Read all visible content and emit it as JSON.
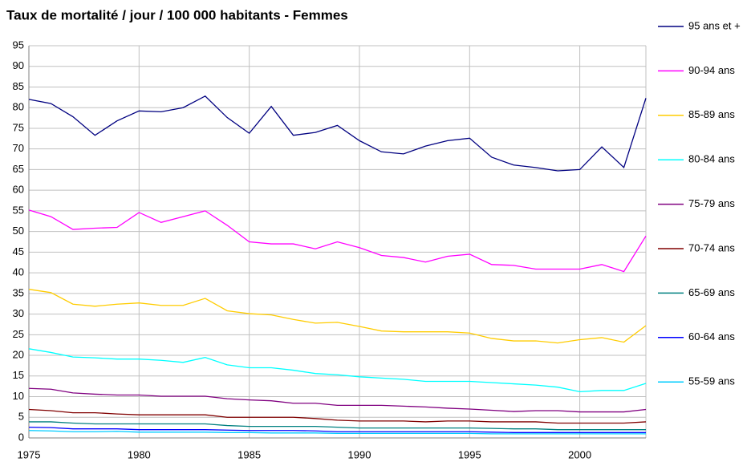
{
  "chart_data": {
    "type": "line",
    "title": "Taux de mortalité / jour / 100 000 habitants - Femmes",
    "x": [
      1975,
      1976,
      1977,
      1978,
      1979,
      1980,
      1981,
      1982,
      1983,
      1984,
      1985,
      1986,
      1987,
      1988,
      1989,
      1990,
      1991,
      1992,
      1993,
      1994,
      1995,
      1996,
      1997,
      1998,
      1999,
      2000,
      2001,
      2002,
      2003
    ],
    "xlim": [
      1975,
      2003
    ],
    "xticks": [
      1975,
      1980,
      1985,
      1990,
      1995,
      2000
    ],
    "ylim": [
      0,
      95
    ],
    "yticks": [
      0,
      5,
      10,
      15,
      20,
      25,
      30,
      35,
      40,
      45,
      50,
      55,
      60,
      65,
      70,
      75,
      80,
      85,
      90,
      95
    ],
    "grid": true,
    "legend": "right",
    "series": [
      {
        "name": "95 ans et +",
        "color": "#000080",
        "values": [
          82,
          81,
          77.8,
          73.3,
          76.8,
          79.2,
          79,
          80,
          82.8,
          77.6,
          73.8,
          80.3,
          73.3,
          74,
          75.7,
          72,
          69.3,
          68.8,
          70.7,
          72,
          72.6,
          68,
          66.1,
          65.5,
          64.7,
          65,
          70.5,
          65.5,
          82.3
        ]
      },
      {
        "name": "90-94 ans",
        "color": "#ff00ff",
        "values": [
          55.2,
          53.6,
          50.5,
          50.8,
          51,
          54.6,
          52.2,
          53.6,
          55,
          51.5,
          47.5,
          47,
          47,
          45.8,
          47.5,
          46.1,
          44.2,
          43.7,
          42.6,
          44,
          44.5,
          42,
          41.8,
          40.9,
          40.9,
          40.9,
          42,
          40.3,
          48.9
        ]
      },
      {
        "name": "85-89 ans",
        "color": "#ffcc00",
        "values": [
          36,
          35.2,
          32.4,
          31.9,
          32.4,
          32.7,
          32.1,
          32.1,
          33.8,
          30.8,
          30.1,
          29.8,
          28.7,
          27.8,
          28,
          27,
          25.9,
          25.7,
          25.7,
          25.7,
          25.4,
          24.1,
          23.5,
          23.5,
          23,
          23.8,
          24.3,
          23.2,
          27.2
        ]
      },
      {
        "name": "80-84 ans",
        "color": "#00ffff",
        "values": [
          21.6,
          20.7,
          19.6,
          19.4,
          19.1,
          19.1,
          18.8,
          18.3,
          19.5,
          17.7,
          17,
          17,
          16.4,
          15.6,
          15.3,
          14.8,
          14.5,
          14.2,
          13.7,
          13.7,
          13.7,
          13.4,
          13.1,
          12.8,
          12.3,
          11.2,
          11.5,
          11.5,
          13.2
        ]
      },
      {
        "name": "75-79 ans",
        "color": "#800080",
        "values": [
          12,
          11.8,
          10.9,
          10.6,
          10.4,
          10.4,
          10.1,
          10.1,
          10.1,
          9.5,
          9.2,
          9,
          8.4,
          8.4,
          7.9,
          7.9,
          7.9,
          7.7,
          7.5,
          7.2,
          7,
          6.7,
          6.4,
          6.6,
          6.6,
          6.3,
          6.3,
          6.3,
          6.9
        ]
      },
      {
        "name": "70-74 ans",
        "color": "#800000",
        "values": [
          6.9,
          6.6,
          6.1,
          6.1,
          5.8,
          5.6,
          5.6,
          5.6,
          5.6,
          5,
          5,
          5,
          5,
          4.7,
          4.3,
          4.1,
          4.1,
          4.1,
          3.9,
          4.1,
          4.1,
          3.9,
          3.9,
          3.9,
          3.6,
          3.6,
          3.6,
          3.6,
          3.9
        ]
      },
      {
        "name": "65-69 ans",
        "color": "#008080",
        "values": [
          3.9,
          3.9,
          3.6,
          3.4,
          3.4,
          3.4,
          3.4,
          3.4,
          3.4,
          3,
          2.8,
          2.8,
          2.8,
          2.8,
          2.6,
          2.4,
          2.4,
          2.4,
          2.4,
          2.4,
          2.4,
          2.3,
          2.2,
          2.2,
          2,
          2,
          2,
          2,
          2
        ]
      },
      {
        "name": "60-64 ans",
        "color": "#0000ff",
        "values": [
          2.6,
          2.5,
          2.2,
          2.2,
          2.2,
          2,
          2,
          2,
          2,
          1.9,
          1.8,
          1.8,
          1.8,
          1.7,
          1.5,
          1.5,
          1.5,
          1.5,
          1.5,
          1.5,
          1.5,
          1.4,
          1.3,
          1.3,
          1.3,
          1.3,
          1.3,
          1.3,
          1.3
        ]
      },
      {
        "name": "55-59 ans",
        "color": "#00ccff",
        "values": [
          1.8,
          1.7,
          1.5,
          1.5,
          1.6,
          1.4,
          1.4,
          1.4,
          1.4,
          1.3,
          1.3,
          1.2,
          1.2,
          1.2,
          1.1,
          1.1,
          1.1,
          1.1,
          1.1,
          1.1,
          1.1,
          1,
          1,
          1,
          1,
          1,
          1,
          1,
          1
        ]
      }
    ]
  }
}
